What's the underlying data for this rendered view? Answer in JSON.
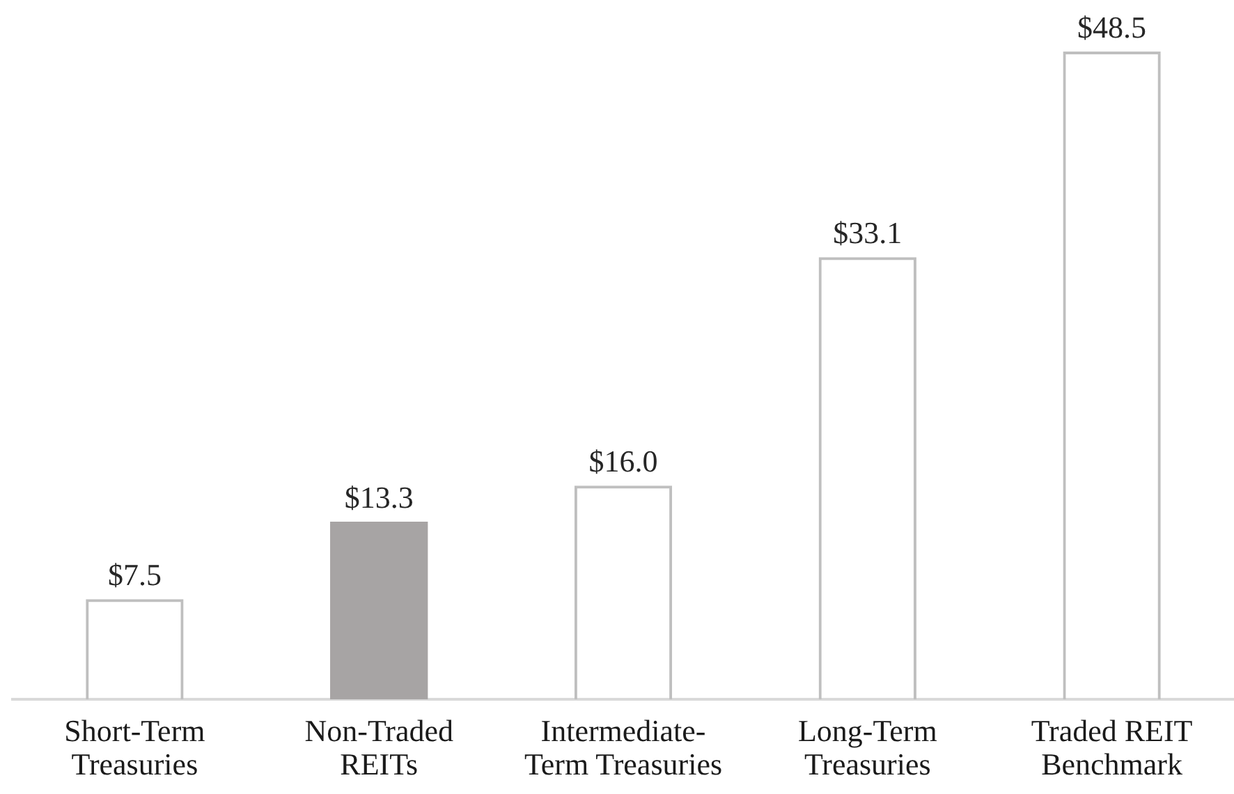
{
  "chart_data": {
    "type": "bar",
    "categories": [
      "Short-Term Treasuries",
      "Non-Traded REITs",
      "Intermediate-Term Treasuries",
      "Long-Term Treasuries",
      "Traded REIT Benchmark"
    ],
    "values": [
      7.5,
      13.3,
      16.0,
      33.1,
      48.5
    ],
    "value_labels": [
      "$7.5",
      "$13.3",
      "$16.0",
      "$33.1",
      "$48.5"
    ],
    "color": "#bfbfbf",
    "colors": [
      "#bfbfbf",
      "#a7a4a4",
      "#bfbfbf",
      "#bfbfbf",
      "#bfbfbf"
    ],
    "tick_labels": "x"
  }
}
